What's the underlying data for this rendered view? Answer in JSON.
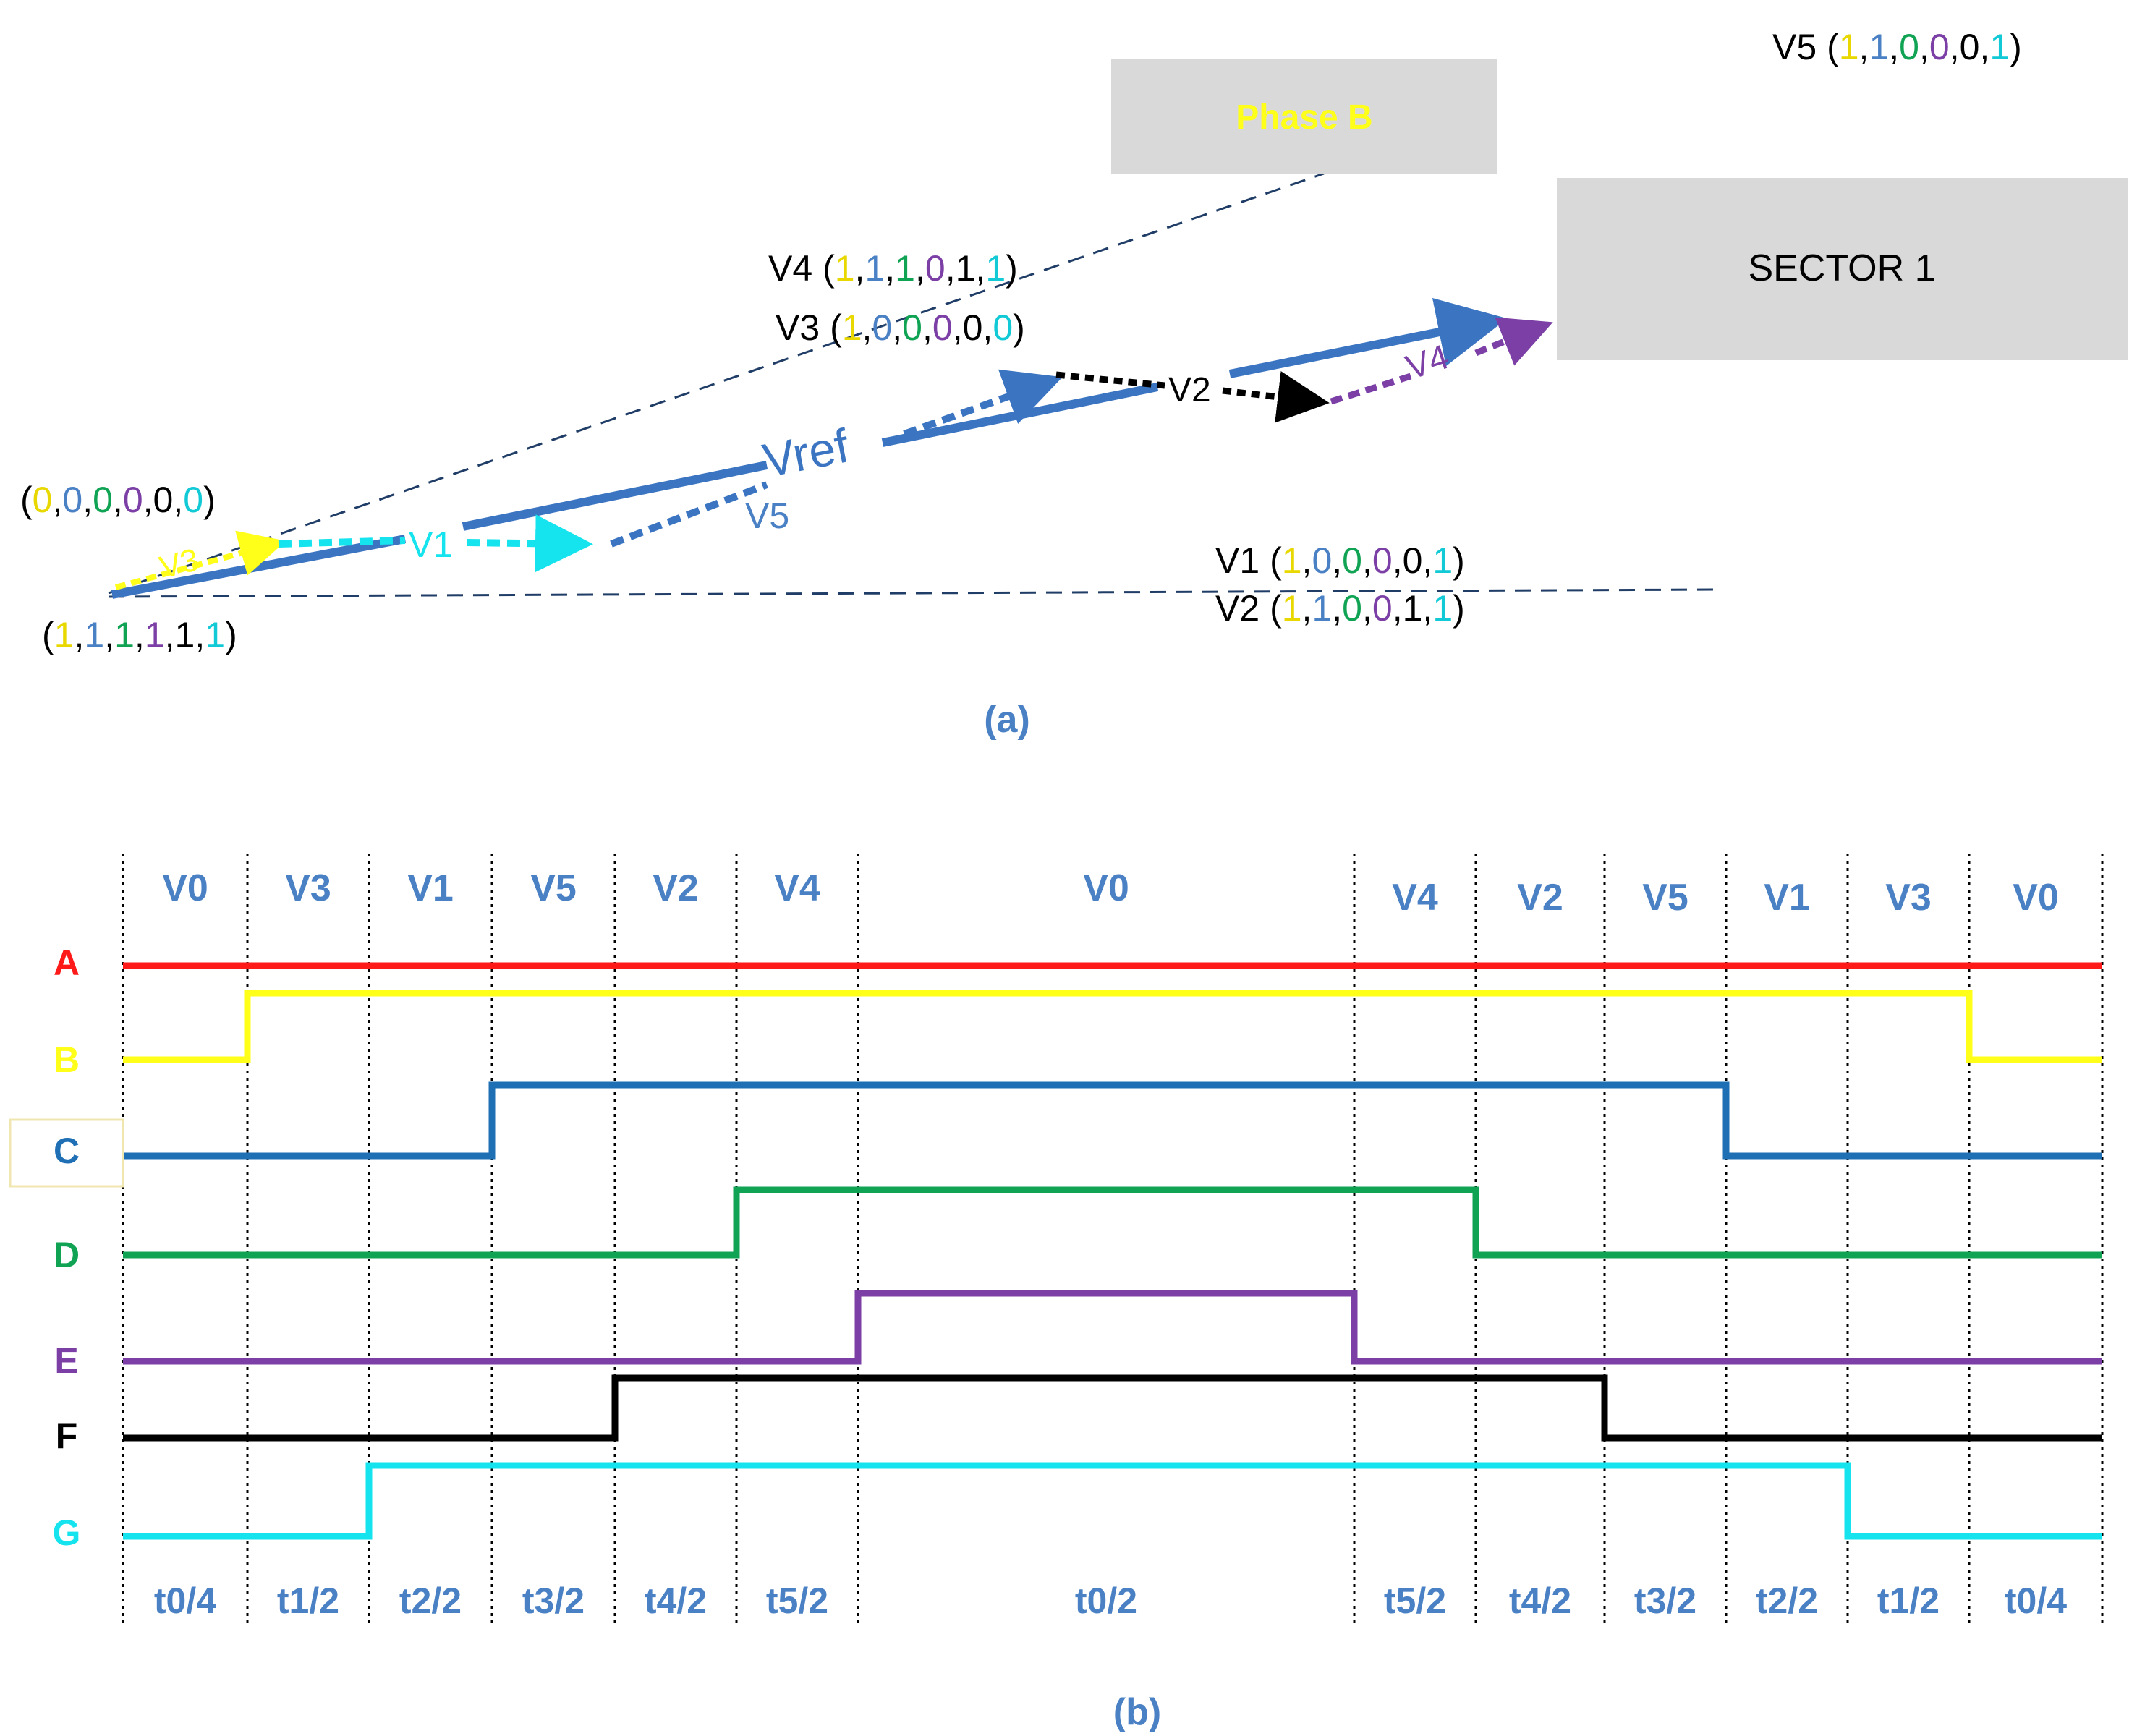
{
  "colors": {
    "A": "#ff1a1a",
    "B": "#ffff1a",
    "C": "#1f6fb5",
    "D": "#10a354",
    "E": "#7b3fa6",
    "F": "#000000",
    "G": "#15e3ee",
    "ref_blue": "#3b75c2",
    "label_blue": "#4a80c4",
    "gray_box": "#d9d9d9"
  },
  "panel_a": {
    "caption": "(a)",
    "phase_b_label": "Phase B",
    "sector_label": "SECTOR 1",
    "vref_label": "Vref",
    "vector_labels": {
      "v1": "V1",
      "v2": "V2",
      "v3": "V3",
      "v4": "V4",
      "v5": "V5"
    },
    "states": [
      {
        "name": "V5",
        "bits": [
          "1",
          "1",
          "0",
          "0",
          "0",
          "1"
        ]
      },
      {
        "name": "V4",
        "bits": [
          "1",
          "1",
          "1",
          "0",
          "1",
          "1"
        ]
      },
      {
        "name": "V3",
        "bits": [
          "1",
          "0",
          "0",
          "0",
          "0",
          "0"
        ]
      },
      {
        "name": "",
        "bits": [
          "0",
          "0",
          "0",
          "0",
          "0",
          "0"
        ]
      },
      {
        "name": "",
        "bits": [
          "1",
          "1",
          "1",
          "1",
          "1",
          "1"
        ]
      },
      {
        "name": "V1",
        "bits": [
          "1",
          "0",
          "0",
          "0",
          "0",
          "1"
        ]
      },
      {
        "name": "V2",
        "bits": [
          "1",
          "1",
          "0",
          "0",
          "1",
          "1"
        ]
      }
    ]
  },
  "panel_b": {
    "caption": "(b)",
    "top_labels": [
      "V0",
      "V3",
      "V1",
      "V5",
      "V2",
      "V4",
      "V0",
      "V4",
      "V2",
      "V5",
      "V1",
      "V3",
      "V0"
    ],
    "bottom_labels": [
      "t0/4",
      "t1/2",
      "t2/2",
      "t3/2",
      "t4/2",
      "t5/2",
      "t0/2",
      "t5/2",
      "t4/2",
      "t3/2",
      "t2/2",
      "t1/2",
      "t0/4"
    ],
    "signals": [
      {
        "name": "A",
        "levels": [
          1,
          1,
          1,
          1,
          1,
          1,
          1,
          1,
          1,
          1,
          1,
          1,
          1
        ]
      },
      {
        "name": "B",
        "levels": [
          0,
          1,
          1,
          1,
          1,
          1,
          1,
          1,
          1,
          1,
          1,
          1,
          0
        ]
      },
      {
        "name": "C",
        "levels": [
          0,
          0,
          0,
          1,
          1,
          1,
          1,
          1,
          1,
          1,
          0,
          0,
          0
        ]
      },
      {
        "name": "D",
        "levels": [
          0,
          0,
          0,
          0,
          0,
          1,
          1,
          1,
          0,
          0,
          0,
          0,
          0
        ]
      },
      {
        "name": "E",
        "levels": [
          0,
          0,
          0,
          0,
          0,
          0,
          1,
          0,
          0,
          0,
          0,
          0,
          0
        ]
      },
      {
        "name": "F",
        "levels": [
          0,
          0,
          0,
          0,
          1,
          1,
          1,
          1,
          1,
          0,
          0,
          0,
          0
        ]
      },
      {
        "name": "G",
        "levels": [
          0,
          0,
          1,
          1,
          1,
          1,
          1,
          1,
          1,
          1,
          1,
          0,
          0
        ]
      }
    ]
  }
}
